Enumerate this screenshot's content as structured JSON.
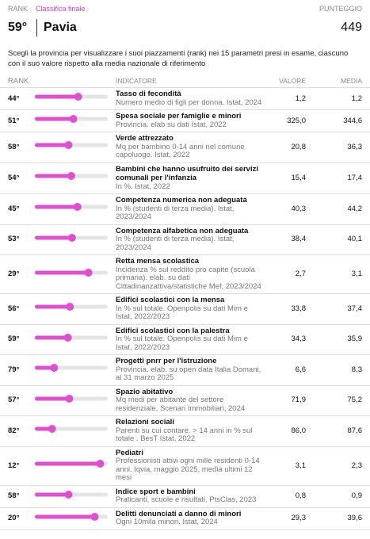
{
  "header": {
    "rank_label": "RANK",
    "tab": "Classifica finale",
    "score_label": "PUNTEGGIO",
    "rank": "59°",
    "province": "Pavia",
    "score": "449"
  },
  "description": "Scegli la provincia per visualizzare i suoi piazzamenti (rank) nei 15 parametri presi in esame, ciascuno con il suo valore rispetto alla media nazionale di riferimento",
  "table": {
    "columns": [
      "RANK",
      "INDICATORE",
      "VALORE",
      "MEDIA"
    ],
    "xlim": [
      107,
      1
    ],
    "rows": [
      {
        "rank": {
          "value": 44,
          "label": "44°"
        },
        "title": "Tasso di fecondità",
        "source": "Numero medio di figli per donna. Istat, 2024",
        "valore": "1,2",
        "media": "1,2"
      },
      {
        "rank": {
          "value": 51,
          "label": "51°"
        },
        "title": "Spesa sociale per famiglie e minori",
        "source": "Provincia. elab su dati Istat, 2022",
        "valore": "325,0",
        "media": "344,6"
      },
      {
        "rank": {
          "value": 58,
          "label": "58°"
        },
        "title": "Verde attrezzato",
        "source": "Mq per bambino 0-14 anni nel comune capoluogo. Istat, 2022",
        "valore": "20,8",
        "media": "36,3"
      },
      {
        "rank": {
          "value": 54,
          "label": "54°"
        },
        "title": "Bambini che hanno usufruito dei servizi comunali per l'infanzia",
        "source": "In %. Istat, 2022",
        "valore": "15,4",
        "media": "17,4"
      },
      {
        "rank": {
          "value": 45,
          "label": "45°"
        },
        "title": "Competenza numerica non adeguata",
        "source": "In % (studenti di terza media). Istat, 2023/2024",
        "valore": "40,3",
        "media": "44,2"
      },
      {
        "rank": {
          "value": 53,
          "label": "53°"
        },
        "title": "Competenza alfabetica non adeguata",
        "source": "In % (studenti di terza media). Istat, 2023/2024",
        "valore": "38,4",
        "media": "40,1"
      },
      {
        "rank": {
          "value": 29,
          "label": "29°"
        },
        "title": "Retta mensa scolastica",
        "source": "Incidenza % sul reddito pro capite (scuola primaria). elab. su dati Cittadinanzattiva/statistiche Mef, 2023/2024",
        "valore": "2,7",
        "media": "3,1"
      },
      {
        "rank": {
          "value": 56,
          "label": "56°"
        },
        "title": "Edifici scolastici con la mensa",
        "source": "In % sul totale. Openpolis su dati Mim e Istat, 2022/2023",
        "valore": "33,8",
        "media": "37,4"
      },
      {
        "rank": {
          "value": 59,
          "label": "59°"
        },
        "title": "Edifici scolastici con la palestra",
        "source": "In % sul totale. Openpolis su dati Mim e Istat, 2022/2023",
        "valore": "34,3",
        "media": "35,9"
      },
      {
        "rank": {
          "value": 79,
          "label": "79°"
        },
        "title": "Progetti pnrr per l'istruzione",
        "source": "Provincia. elab. su open data Italia Domani, al 31 marzo 2025",
        "valore": "6,6",
        "media": "8,3"
      },
      {
        "rank": {
          "value": 57,
          "label": "57°"
        },
        "title": "Spazio abitativo",
        "source": "Mq medi per abitante del settore residenziale. Scenari Immobiliari, 2024",
        "valore": "71,9",
        "media": "75,2"
      },
      {
        "rank": {
          "value": 82,
          "label": "82°"
        },
        "title": "Relazioni sociali",
        "source": "Parenti su cui contare. > 14 anni in % sul totale . BesT Istat, 2022",
        "valore": "86,0",
        "media": "87,6"
      },
      {
        "rank": {
          "value": 12,
          "label": "12°"
        },
        "title": "Pediatri",
        "source": "Professionisti attivi ogni mille residenti 0-14 anni. Iqvia, maggio 2025, media ultimi 12 mesi",
        "valore": "3,1",
        "media": "2,3"
      },
      {
        "rank": {
          "value": 58,
          "label": "58°"
        },
        "title": "Indice sport e bambini",
        "source": "Praticanti, scuole e risultati. PtsClas, 2023",
        "valore": "0,8",
        "media": "0,9"
      },
      {
        "rank": {
          "value": 20,
          "label": "20°"
        },
        "title": "Delitti denunciati a danno di minori",
        "source": "Ogni 10mila minori. Istat, 2024",
        "valore": "29,3",
        "media": "39,6"
      }
    ]
  }
}
